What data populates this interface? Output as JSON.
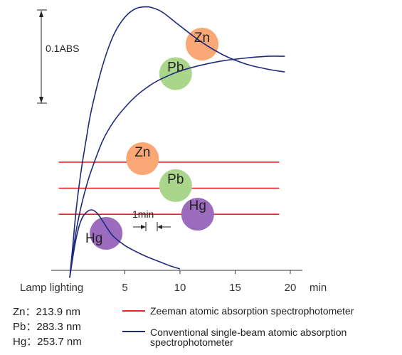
{
  "chart_data": {
    "type": "line",
    "xlabel": "min",
    "x_ticks": [
      5,
      10,
      15,
      20
    ],
    "x_start_label": "Lamp lighting",
    "xlim": [
      0,
      22
    ],
    "y_scale_label": "0.1ABS",
    "y_scale_value": 0.1,
    "one_min_label": "1min",
    "colors": {
      "zeeman": "#e8232a",
      "conventional": "#1f2a7c",
      "Zn": "#f9a775",
      "Pb": "#a9d68a",
      "Hg": "#9b6bbd"
    },
    "series": [
      {
        "name": "Zeeman atomic absorption spectrophotometer",
        "color": "#e8232a",
        "lines": [
          {
            "element": "Zn",
            "x": [
              -1,
              19
            ],
            "y": [
              0.123,
              0.123
            ]
          },
          {
            "element": "Pb",
            "x": [
              -1,
              19
            ],
            "y": [
              0.093,
              0.093
            ]
          },
          {
            "element": "Hg",
            "x": [
              -1,
              19
            ],
            "y": [
              0.063,
              0.063
            ]
          }
        ]
      },
      {
        "name": "Conventional single-beam atomic absorption spectrophotometer",
        "color": "#1f2a7c",
        "curves": [
          {
            "element": "Zn",
            "x": [
              0,
              0.3,
              0.6,
              1,
              1.5,
              2,
              3,
              4,
              5,
              6,
              7,
              7.7,
              8.5,
              10,
              12,
              14,
              16,
              18,
              19.5
            ],
            "y": [
              -0.01,
              0.03,
              0.07,
              0.11,
              0.15,
              0.185,
              0.235,
              0.27,
              0.29,
              0.3,
              0.302,
              0.3,
              0.295,
              0.28,
              0.261,
              0.246,
              0.236,
              0.23,
              0.227
            ]
          },
          {
            "element": "Pb",
            "x": [
              0,
              0.3,
              0.6,
              1,
              1.5,
              2,
              3,
              4,
              5,
              6,
              7,
              8,
              10,
              12,
              14,
              16,
              18,
              19.5
            ],
            "y": [
              -0.01,
              0.02,
              0.045,
              0.07,
              0.095,
              0.115,
              0.148,
              0.17,
              0.186,
              0.199,
              0.209,
              0.217,
              0.228,
              0.235,
              0.24,
              0.243,
              0.245,
              0.245
            ]
          },
          {
            "element": "Hg",
            "x": [
              0,
              0.5,
              1,
              1.5,
              2,
              2.5,
              3,
              3.5,
              4,
              5,
              6,
              7,
              8,
              9,
              10
            ],
            "y": [
              -0.01,
              0.03,
              0.055,
              0.065,
              0.068,
              0.064,
              0.055,
              0.045,
              0.037,
              0.027,
              0.02,
              0.014,
              0.009,
              0.004,
              0.0
            ]
          }
        ]
      }
    ],
    "element_markers": [
      {
        "element": "Zn",
        "group": "conventional",
        "x": 12,
        "y": 0.259
      },
      {
        "element": "Pb",
        "group": "conventional",
        "x": 9.6,
        "y": 0.225
      },
      {
        "element": "Zn",
        "group": "zeeman",
        "x": 6.6,
        "y": 0.127
      },
      {
        "element": "Pb",
        "group": "zeeman",
        "x": 9.6,
        "y": 0.096
      },
      {
        "element": "Hg",
        "group": "zeeman",
        "x": 11.6,
        "y": 0.063
      },
      {
        "element": "Hg",
        "group": "conventional",
        "x": 3.3,
        "y": 0.041
      }
    ],
    "wavelengths": [
      {
        "element": "Zn",
        "text": "Zn：213.9 nm"
      },
      {
        "element": "Pb",
        "text": "Pb：283.3 nm"
      },
      {
        "element": "Hg",
        "text": "Hg：253.7 nm"
      }
    ],
    "legend": [
      {
        "key": "zeeman",
        "label": "Zeeman atomic absorption spectrophotometer"
      },
      {
        "key": "conventional",
        "label": "Conventional single-beam atomic absorption spectrophotometer"
      }
    ]
  }
}
